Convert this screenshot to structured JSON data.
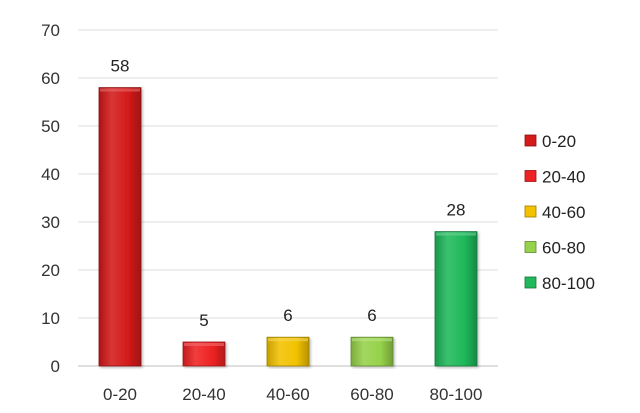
{
  "chart_data": {
    "type": "bar",
    "categories": [
      "0-20",
      "20-40",
      "40-60",
      "60-80",
      "80-100"
    ],
    "values": [
      58,
      5,
      6,
      6,
      28
    ],
    "colors": [
      "#d41a1a",
      "#ee2222",
      "#f2c200",
      "#96d24a",
      "#1fb85a"
    ],
    "ylim": [
      0,
      70
    ],
    "yticks": [
      0,
      10,
      20,
      30,
      40,
      50,
      60,
      70
    ],
    "grid": true,
    "legend": {
      "placement": "right",
      "entries": [
        "0-20",
        "20-40",
        "40-60",
        "60-80",
        "80-100"
      ]
    },
    "title": "",
    "xlabel": "",
    "ylabel": ""
  }
}
